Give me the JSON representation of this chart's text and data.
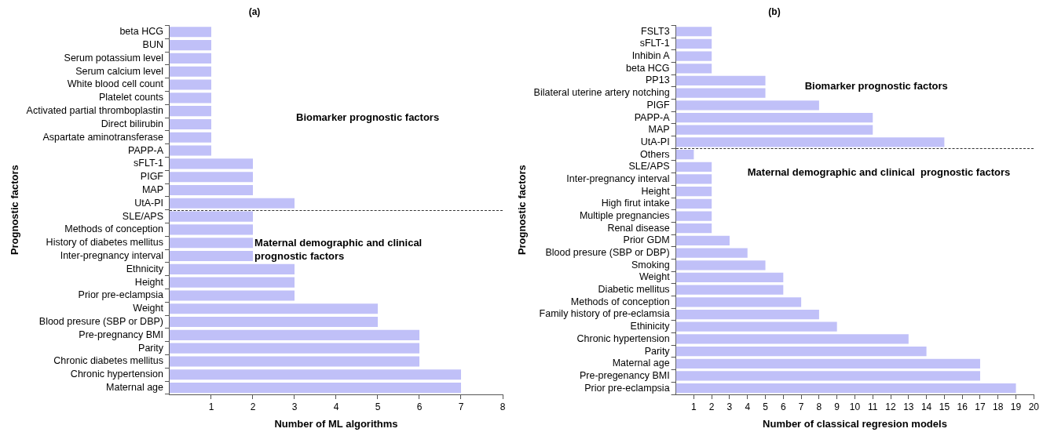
{
  "chart_data": [
    {
      "type": "bar",
      "orientation": "horizontal",
      "title": "(a)",
      "xlabel": "Number of ML algorithms",
      "ylabel": "Prognostic factors",
      "categories": [
        "beta HCG",
        "BUN",
        "Serum potassium level",
        "Serum calcium level",
        "White blood cell count",
        "Platelet counts",
        "Activated partial thromboplastin",
        "Direct bilirubin",
        "Aspartate aminotransferase",
        "PAPP-A",
        "sFLT-1",
        "PIGF",
        "MAP",
        "UtA-PI",
        "SLE/APS",
        "Methods of conception",
        "History of diabetes mellitus",
        "Inter-pregnancy interval",
        "Ethnicity",
        "Height",
        "Prior pre-eclampsia",
        "Weight",
        "Blood presure (SBP or DBP)",
        "Pre-pregnancy BMI",
        "Parity",
        "Chronic diabetes mellitus",
        "Chronic hypertension",
        "Maternal age"
      ],
      "values": [
        1,
        1,
        1,
        1,
        1,
        1,
        1,
        1,
        1,
        1,
        2,
        2,
        2,
        3,
        2,
        2,
        2,
        2,
        3,
        3,
        3,
        5,
        5,
        6,
        6,
        6,
        7,
        7
      ],
      "color": "#c0c0f8",
      "xlim": [
        0,
        8
      ],
      "xticks": [
        1,
        2,
        3,
        4,
        5,
        6,
        7,
        8
      ],
      "grid": false,
      "legend": false,
      "annotations": [
        "Biomarker prognostic factors",
        "Maternal demographic and clinical prognostic factors"
      ]
    },
    {
      "type": "bar",
      "orientation": "horizontal",
      "title": "(b)",
      "xlabel": "Number of classical regresion models",
      "ylabel": "Prognostic factors",
      "categories": [
        "FSLT3",
        "sFLT-1",
        "Inhibin A",
        "beta HCG",
        "PP13",
        "Bilateral uterine artery notching",
        "PIGF",
        "PAPP-A",
        "MAP",
        "UtA-PI",
        "Others",
        "SLE/APS",
        "Inter-pregnancy interval",
        "Height",
        "High firut intake",
        "Multiple pregnancies",
        "Renal disease",
        "Prior GDM",
        "Blood presure (SBP or DBP)",
        "Smoking",
        "Weight",
        "Diabetic mellitus",
        "Methods of conception",
        "Family history of pre-eclamsia",
        "Ethinicity",
        "Chronic hypertension",
        "Parity",
        "Maternal age",
        "Pre-pregenancy BMI",
        "Prior pre-eclampsia"
      ],
      "values": [
        2,
        2,
        2,
        2,
        5,
        5,
        8,
        11,
        11,
        15,
        1,
        2,
        2,
        2,
        2,
        2,
        2,
        3,
        4,
        5,
        6,
        6,
        7,
        8,
        9,
        13,
        14,
        17,
        17,
        19
      ],
      "color": "#c0c0f8",
      "xlim": [
        0,
        20
      ],
      "xticks": [
        1,
        2,
        3,
        4,
        5,
        6,
        7,
        8,
        9,
        10,
        11,
        12,
        13,
        14,
        15,
        16,
        17,
        18,
        19,
        20
      ],
      "grid": false,
      "legend": false,
      "annotations": [
        "Biomarker prognostic factors",
        "Maternal demographic and clinical  prognostic factors"
      ]
    }
  ]
}
